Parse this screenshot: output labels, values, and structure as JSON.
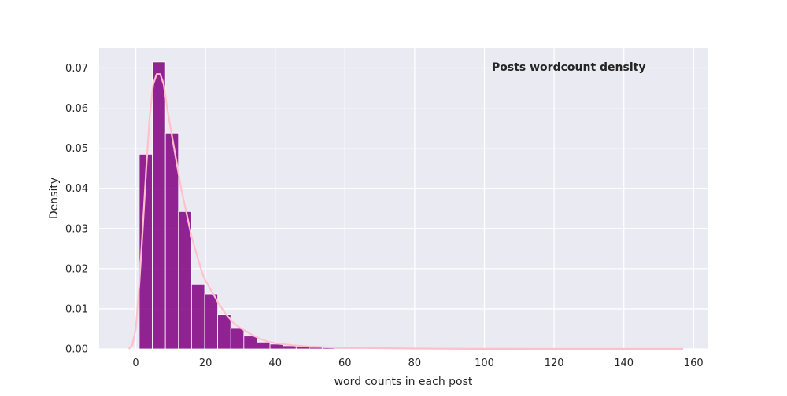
{
  "chart_data": {
    "type": "bar",
    "title": "Posts wordcount density",
    "xlabel": "word counts in each post",
    "ylabel": "Density",
    "xlim": [
      -10.5,
      164
    ],
    "ylim": [
      0,
      0.075
    ],
    "grid": true,
    "x_ticks": [
      0,
      20,
      40,
      60,
      80,
      100,
      120,
      140,
      160
    ],
    "x_tick_labels": [
      "0",
      "20",
      "40",
      "60",
      "80",
      "100",
      "120",
      "140",
      "160"
    ],
    "y_ticks": [
      0,
      0.01,
      0.02,
      0.03,
      0.04,
      0.05,
      0.06,
      0.07
    ],
    "y_tick_labels": [
      "0.00",
      "0.01",
      "0.02",
      "0.03",
      "0.04",
      "0.05",
      "0.06",
      "0.07"
    ],
    "histogram": {
      "bin_edges": [
        1,
        4.75,
        8.5,
        12.25,
        16,
        19.75,
        23.5,
        27.25,
        31,
        34.75,
        38.5,
        42.25,
        46,
        49.75,
        53.5,
        57.25,
        61,
        64.75,
        68.5,
        72.25,
        76,
        79.75,
        83.5,
        87.25,
        91,
        94.75,
        98.5,
        102.25,
        106,
        109.75,
        113.5,
        117.25,
        121,
        124.75,
        128.5,
        132.25,
        136,
        139.75,
        143.5,
        147.25,
        151,
        154.75
      ],
      "values": [
        0.0485,
        0.0715,
        0.0538,
        0.0342,
        0.016,
        0.0137,
        0.0085,
        0.0051,
        0.0032,
        0.0017,
        0.0012,
        0.0008,
        0.0006,
        0.0004,
        0.0003,
        0.0002,
        0.0002,
        0.0001,
        0.0001,
        0.0001,
        5e-05,
        5e-05,
        5e-05,
        5e-05,
        3e-05,
        3e-05,
        3e-05,
        2e-05,
        2e-05,
        2e-05,
        2e-05,
        2e-05,
        1e-05,
        1e-05,
        1e-05,
        1e-05,
        1e-05,
        1e-05,
        1e-05,
        1e-05,
        1e-05
      ],
      "color": "#800080"
    },
    "kde": {
      "name": "",
      "color": "#ffc0cb",
      "x": [
        -2,
        -1,
        0,
        1,
        2,
        3,
        4,
        5,
        6,
        7,
        8,
        9,
        10,
        11,
        12,
        13,
        14,
        15,
        16,
        17,
        18,
        19,
        20,
        22,
        24,
        26,
        28,
        30,
        32,
        34,
        36,
        38,
        40,
        45,
        50,
        55,
        60,
        70,
        80,
        90,
        100,
        120,
        140,
        157
      ],
      "y": [
        0.0,
        0.001,
        0.005,
        0.016,
        0.03,
        0.045,
        0.058,
        0.066,
        0.0685,
        0.0685,
        0.066,
        0.06,
        0.055,
        0.05,
        0.045,
        0.04,
        0.036,
        0.032,
        0.028,
        0.025,
        0.022,
        0.019,
        0.017,
        0.014,
        0.011,
        0.0085,
        0.0065,
        0.0052,
        0.0042,
        0.0032,
        0.0024,
        0.0018,
        0.0014,
        0.0009,
        0.0006,
        0.0004,
        0.0003,
        0.0002,
        0.0001,
        5e-05,
        3e-05,
        1e-05,
        1e-05,
        0.0
      ]
    }
  },
  "colors": {
    "plot_background": "#eaeaf2",
    "grid": "#ffffff",
    "bar_fill": "#800080",
    "kde_line": "#ffc0cb"
  }
}
